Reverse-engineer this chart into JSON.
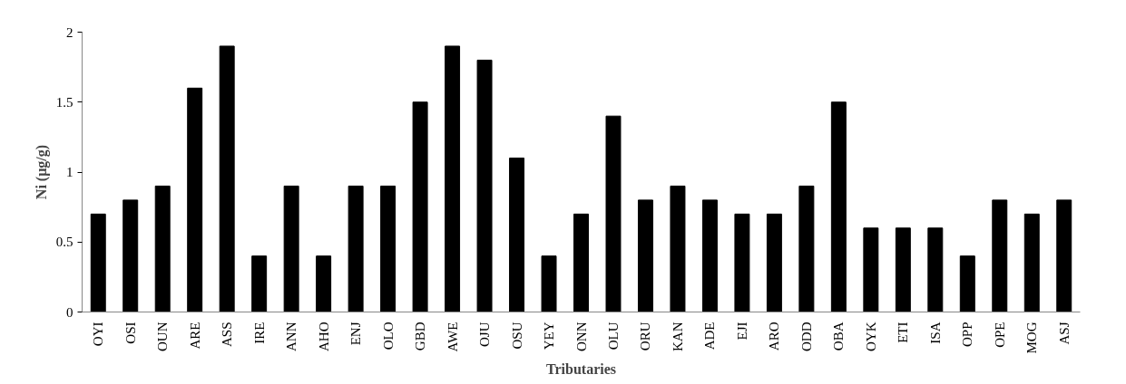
{
  "chart_data": {
    "type": "bar",
    "xlabel": "Tributaries",
    "ylabel": "Ni (µg/g)",
    "categories": [
      "OYI",
      "OSI",
      "OUN",
      "ARE",
      "ASS",
      "IRE",
      "ANN",
      "AHO",
      "ENJ",
      "OLO",
      "GBD",
      "AWE",
      "OJU",
      "OSU",
      "YEY",
      "ONN",
      "OLU",
      "ORU",
      "KAN",
      "ADE",
      "EJI",
      "ARO",
      "ODD",
      "OBA",
      "OYK",
      "ETI",
      "ISA",
      "OPP",
      "OPE",
      "MOG",
      "ASJ"
    ],
    "values": [
      0.7,
      0.8,
      0.9,
      1.6,
      1.9,
      0.4,
      0.9,
      0.4,
      0.9,
      0.9,
      1.5,
      1.9,
      1.8,
      1.1,
      0.4,
      0.7,
      1.4,
      0.8,
      0.9,
      0.8,
      0.7,
      0.7,
      0.9,
      1.5,
      0.6,
      0.6,
      0.6,
      0.4,
      0.8,
      0.7,
      0.8
    ],
    "color": "#000000",
    "ylim": [
      0,
      2
    ],
    "yticks": [
      0,
      0.5,
      1,
      1.5,
      2
    ],
    "grid": false
  }
}
